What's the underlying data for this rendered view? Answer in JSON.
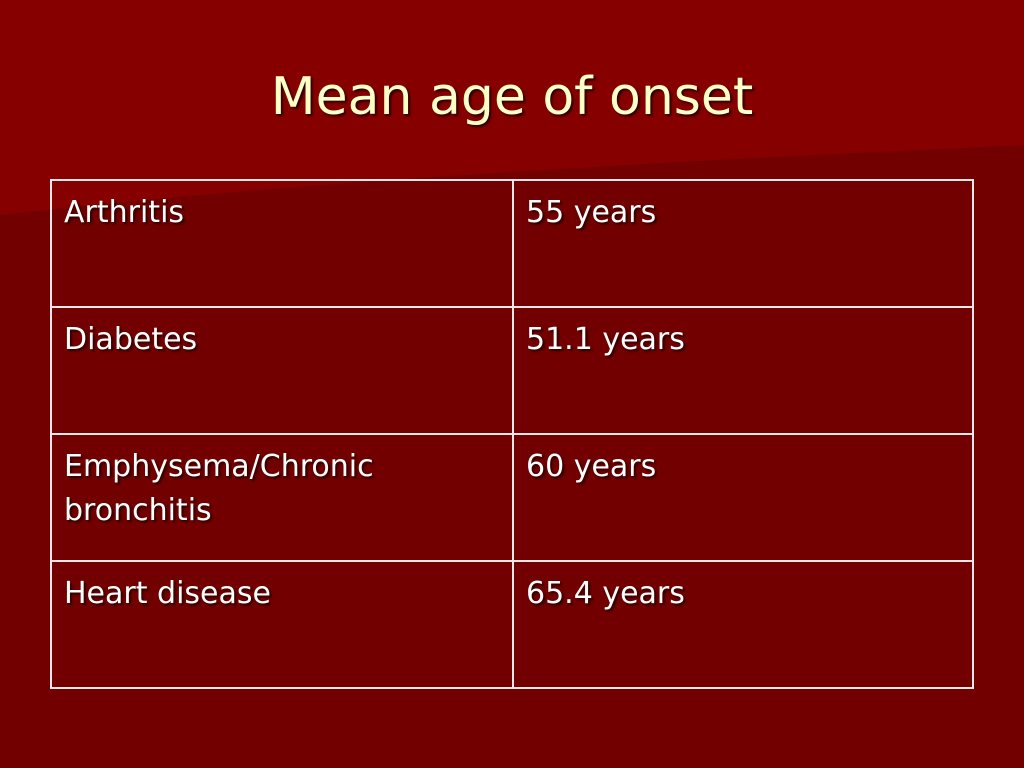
{
  "header": {
    "title": "Mean age of onset"
  },
  "table": {
    "rows": [
      [
        "Arthritis",
        "55 years"
      ],
      [
        "Diabetes",
        "51.1 years"
      ],
      [
        "Emphysema/Chronic bronchitis",
        "60 years"
      ],
      [
        "Heart disease",
        "65.4 years"
      ]
    ]
  }
}
